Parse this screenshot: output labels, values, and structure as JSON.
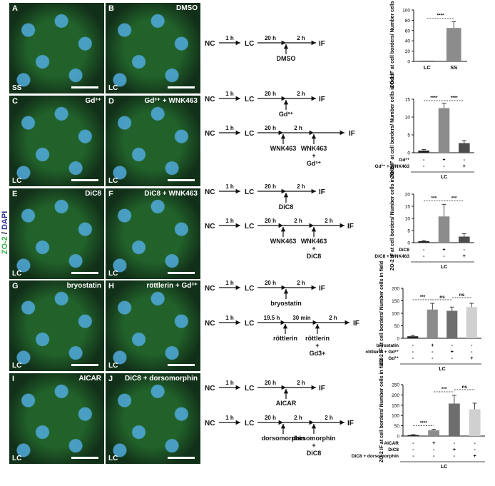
{
  "figure": {
    "side_label_green": "ZO-2",
    "side_label_sep": " / ",
    "side_label_blue": "DAPI"
  },
  "panels": [
    {
      "letter": "A",
      "title": "",
      "condition": "SS"
    },
    {
      "letter": "B",
      "title": "DMSO",
      "condition": "LC"
    },
    {
      "letter": "C",
      "title": "Gd³⁺",
      "condition": "LC"
    },
    {
      "letter": "D",
      "title": "Gd³⁺ + WNK463",
      "condition": "LC"
    },
    {
      "letter": "E",
      "title": "DiC8",
      "condition": "LC"
    },
    {
      "letter": "F",
      "title": "DiC8 + WNK463",
      "condition": "LC"
    },
    {
      "letter": "G",
      "title": "bryostatin",
      "condition": "LC"
    },
    {
      "letter": "H",
      "title": "röttlerin + Gd³⁺",
      "condition": "LC"
    },
    {
      "letter": "I",
      "title": "AICAR",
      "condition": "LC"
    },
    {
      "letter": "J",
      "title": "DiC8  + dorsomorphin",
      "condition": "LC"
    }
  ],
  "flows": {
    "nc": "NC",
    "lc": "LC",
    "if": "IF",
    "t1h": "1 h",
    "t20h": "20 h",
    "t2h": "2 h",
    "t19_5h": "19.5 h",
    "t30min": "30 min",
    "dmso": "DMSO",
    "gd": "Gd³⁺",
    "wnk": "WNK463",
    "dic8": "DiC8",
    "bryostatin": "bryostatin",
    "rottlerin": "röttlerin",
    "plus": "+",
    "aicar": "AICAR",
    "dorsomorphin": "dorsomorphin",
    "gd_plain": "Gd3+"
  },
  "chart_data": [
    {
      "type": "bar",
      "ylabel": "ZO-2 IF at cell borders/ Number cells in field",
      "ylim": [
        0,
        100
      ],
      "yticks": [
        0,
        20,
        40,
        60,
        80,
        100
      ],
      "categories": [
        "LC",
        "SS"
      ],
      "values": [
        1,
        65
      ],
      "errors": [
        0,
        12
      ],
      "colors": [
        "#222222",
        "#8c8c8c"
      ],
      "significance": [
        {
          "label": "****"
        }
      ]
    },
    {
      "type": "bar",
      "ylabel": "ZO-2 IF at cell borders/ Number cells in field",
      "ylim": [
        0,
        15
      ],
      "yticks": [
        0,
        5,
        10,
        15
      ],
      "values": [
        0.6,
        12.5,
        2.7
      ],
      "errors": [
        0.3,
        1.4,
        0.7
      ],
      "colors": [
        "#222222",
        "#8c8c8c",
        "#4d4d4d"
      ],
      "rows": [
        {
          "label": "Gd³⁺",
          "marks": [
            "-",
            "+",
            "-"
          ]
        },
        {
          "label": "Gd³⁺ + WNK463",
          "marks": [
            "-",
            "-",
            "+"
          ]
        }
      ],
      "group_label": "LC",
      "significance": [
        {
          "label": "****"
        },
        {
          "label": "****"
        }
      ]
    },
    {
      "type": "bar",
      "ylabel": "ZO-2 IF at cell borders/ Number cells in field",
      "ylim": [
        0,
        20
      ],
      "yticks": [
        0,
        5,
        10,
        15,
        20
      ],
      "values": [
        0.6,
        10.8,
        2.5
      ],
      "errors": [
        0.3,
        5,
        1.2
      ],
      "colors": [
        "#222222",
        "#8c8c8c",
        "#4d4d4d"
      ],
      "rows": [
        {
          "label": "DiC8",
          "marks": [
            "-",
            "+",
            "-"
          ]
        },
        {
          "label": "DiC8 + WNK463",
          "marks": [
            "-",
            "-",
            "+"
          ]
        }
      ],
      "group_label": "LC",
      "significance": [
        {
          "label": "***"
        },
        {
          "label": "***"
        }
      ]
    },
    {
      "type": "bar",
      "ylabel": "ZO-2 IF at cell borders/ Number cells in field",
      "ylim": [
        0,
        200
      ],
      "yticks": [
        0,
        50,
        100,
        150,
        200
      ],
      "values": [
        8,
        115,
        110,
        125
      ],
      "errors": [
        3,
        25,
        15,
        15
      ],
      "colors": [
        "#222222",
        "#8c8c8c",
        "#6e6e6e",
        "#d0d0d0"
      ],
      "rows": [
        {
          "label": "bryostatin",
          "marks": [
            "-",
            "+",
            "-",
            "-"
          ]
        },
        {
          "label": "röttlerin + Gd³⁺",
          "marks": [
            "-",
            "-",
            "+",
            "-"
          ]
        },
        {
          "label": "Gd³⁺",
          "marks": [
            "-",
            "-",
            "-",
            "+"
          ]
        }
      ],
      "group_label": "LC",
      "significance": [
        {
          "label": "***"
        },
        {
          "label": "ns"
        },
        {
          "label": "ns"
        }
      ]
    },
    {
      "type": "bar",
      "ylabel": "ZO-2 IF at cell borders/ Number cells in field",
      "ylim": [
        0,
        250
      ],
      "yticks": [
        0,
        50,
        100,
        150,
        200,
        250
      ],
      "values": [
        5,
        28,
        158,
        130
      ],
      "errors": [
        2,
        5,
        40,
        30
      ],
      "colors": [
        "#222222",
        "#8c8c8c",
        "#6e6e6e",
        "#d0d0d0"
      ],
      "rows": [
        {
          "label": "AICAR",
          "marks": [
            "-",
            "+",
            "-",
            "-"
          ]
        },
        {
          "label": "DiC8",
          "marks": [
            "-",
            "-",
            "+",
            "-"
          ]
        },
        {
          "label": "DiC8 + dorsomorphin",
          "marks": [
            "-",
            "-",
            "-",
            "+"
          ]
        }
      ],
      "group_label": "LC",
      "significance": [
        {
          "label": "****"
        },
        {
          "label": "***"
        },
        {
          "label": "ns"
        }
      ]
    }
  ]
}
